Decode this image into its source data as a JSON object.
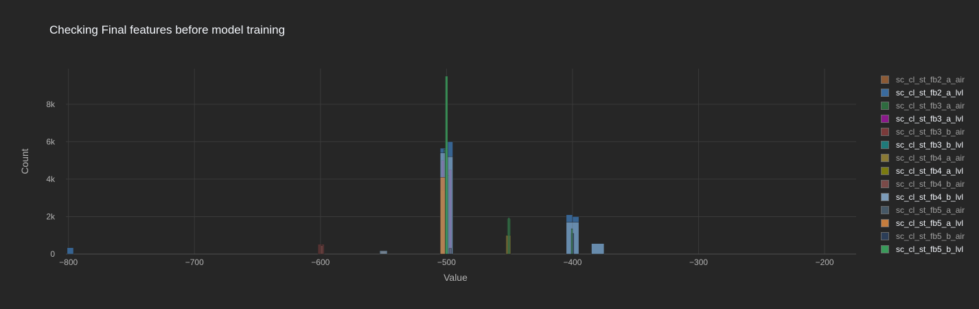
{
  "chart_data": {
    "type": "bar",
    "mode": "overlay histogram",
    "title": "Checking Final features before model training",
    "xlabel": "Value",
    "ylabel": "Count",
    "xlim": [
      -802,
      -175
    ],
    "ylim": [
      0,
      9900
    ],
    "xticks": [
      -800,
      -700,
      -600,
      -500,
      -400,
      -300,
      -200
    ],
    "xtick_labels": [
      "−800",
      "−700",
      "−600",
      "−500",
      "−400",
      "−300",
      "−200"
    ],
    "yticks": [
      0,
      2000,
      4000,
      6000,
      8000
    ],
    "ytick_labels": [
      "0",
      "2k",
      "4k",
      "6k",
      "8k"
    ],
    "grid": true,
    "legend_position": "right",
    "series": [
      {
        "name": "sc_cl_st_fb2_a_air",
        "color": "#8c5a35",
        "opacity": 0.6,
        "bins": [
          [
            -505,
            -500,
            4900
          ],
          [
            -500,
            -495,
            3500
          ],
          [
            -552,
            -548,
            150
          ]
        ]
      },
      {
        "name": "sc_cl_st_fb2_a_lvl",
        "color": "#3a6b9e",
        "opacity": 0.9,
        "bins": [
          [
            -801,
            -796,
            340
          ],
          [
            -505,
            -500,
            5650
          ],
          [
            -500,
            -495,
            6000
          ],
          [
            -405,
            -400,
            2100
          ],
          [
            -400,
            -395,
            2000
          ],
          [
            -385,
            -375,
            580
          ]
        ]
      },
      {
        "name": "sc_cl_st_fb3_a_air",
        "color": "#2e6b3f",
        "opacity": 0.6,
        "bins": [
          [
            -502,
            -499,
            5600
          ],
          [
            -452,
            -449,
            1900
          ]
        ]
      },
      {
        "name": "sc_cl_st_fb3_a_lvl",
        "color": "#8b1a8b",
        "opacity": 0.85,
        "bins": [
          [
            -504,
            -502,
            5000
          ],
          [
            -498,
            -496,
            4500
          ]
        ]
      },
      {
        "name": "sc_cl_st_fb3_b_air",
        "color": "#7a3a3a",
        "opacity": 0.6,
        "bins": [
          [
            -602,
            -599,
            520
          ],
          [
            -599,
            -597,
            520
          ]
        ]
      },
      {
        "name": "sc_cl_st_fb3_b_lvl",
        "color": "#1f7a7a",
        "opacity": 0.6,
        "bins": [
          [
            -500,
            -498,
            4200
          ]
        ]
      },
      {
        "name": "sc_cl_st_fb4_a_air",
        "color": "#8a7a35",
        "opacity": 0.6,
        "bins": [
          [
            -453,
            -449,
            1000
          ]
        ]
      },
      {
        "name": "sc_cl_st_fb4_a_lvl",
        "color": "#7a7a10",
        "opacity": 0.6,
        "bins": [
          [
            -505,
            -501,
            3400
          ]
        ]
      },
      {
        "name": "sc_cl_st_fb4_b_air",
        "color": "#7a4a48",
        "opacity": 0.6,
        "bins": [
          [
            -600,
            -598,
            450
          ]
        ]
      },
      {
        "name": "sc_cl_st_fb4_b_lvl",
        "color": "#7c9bb8",
        "opacity": 0.7,
        "bins": [
          [
            -505,
            -501,
            5400
          ],
          [
            -500,
            -495,
            5200
          ],
          [
            -405,
            -395,
            1700
          ],
          [
            -385,
            -375,
            560
          ],
          [
            -553,
            -547,
            180
          ]
        ]
      },
      {
        "name": "sc_cl_st_fb5_a_air",
        "color": "#465866",
        "opacity": 0.6,
        "bins": [
          [
            -498,
            -496,
            300
          ]
        ]
      },
      {
        "name": "sc_cl_st_fb5_a_lvl",
        "color": "#c57d3e",
        "opacity": 0.75,
        "bins": [
          [
            -505,
            -501,
            4100
          ]
        ]
      },
      {
        "name": "sc_cl_st_fb5_b_air",
        "color": "#2c3e58",
        "opacity": 0.6,
        "bins": [
          [
            -401,
            -399,
            1100
          ]
        ]
      },
      {
        "name": "sc_cl_st_fb5_b_lvl",
        "color": "#3a9a5a",
        "opacity": 0.85,
        "bins": [
          [
            -501,
            -499,
            9500
          ],
          [
            -451,
            -450,
            1950
          ],
          [
            -401,
            -400,
            1350
          ]
        ]
      }
    ]
  }
}
